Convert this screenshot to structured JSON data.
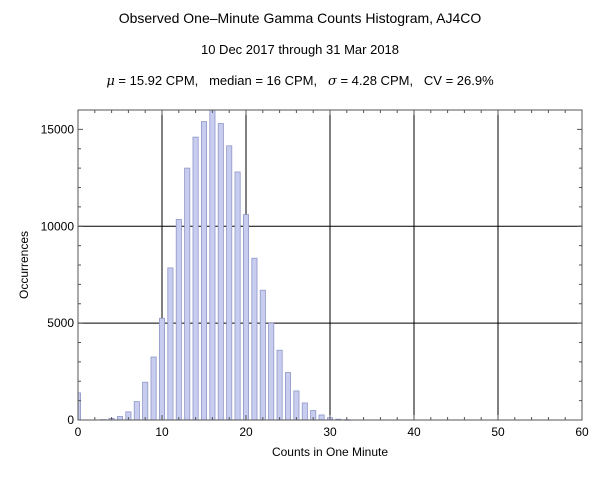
{
  "header": {
    "title": "Observed One–Minute Gamma Counts Histogram, AJ4CO",
    "subtitle": "10 Dec 2017 through 31 Mar 2018",
    "stats": {
      "mu_symbol": "μ",
      "mu_text": " = 15.92 CPM,   median = 16 CPM,   ",
      "sigma_symbol": "σ",
      "sigma_text": " = 4.28 CPM,   CV = 26.9%"
    }
  },
  "chart_data": {
    "type": "bar",
    "title": "Observed One–Minute Gamma Counts Histogram, AJ4CO",
    "subtitle": "10 Dec 2017 through 31 Mar 2018",
    "xlabel": "Counts in One Minute",
    "ylabel": "Occurrences",
    "xlim": [
      0,
      60
    ],
    "ylim": [
      0,
      16000
    ],
    "xticks": [
      0,
      10,
      20,
      30,
      40,
      50,
      60
    ],
    "yticks": [
      0,
      5000,
      10000,
      15000
    ],
    "grid_lines_x": [
      10,
      20,
      30,
      40,
      50
    ],
    "grid_lines_y": [
      5000,
      10000
    ],
    "grid": true,
    "bar_color": "#c8cdf0",
    "bar_edge_color": "#8e96c8",
    "x": [
      0,
      3,
      4,
      5,
      6,
      7,
      8,
      9,
      10,
      11,
      12,
      13,
      14,
      15,
      16,
      17,
      18,
      19,
      20,
      21,
      22,
      23,
      24,
      25,
      26,
      27,
      28,
      29,
      30,
      31,
      32
    ],
    "values": [
      1400,
      20,
      80,
      180,
      420,
      950,
      1950,
      3250,
      5250,
      7850,
      10350,
      13000,
      14600,
      15400,
      16000,
      15300,
      14150,
      12800,
      10600,
      8350,
      6700,
      5000,
      3600,
      2450,
      1500,
      880,
      490,
      260,
      120,
      40,
      15
    ]
  }
}
